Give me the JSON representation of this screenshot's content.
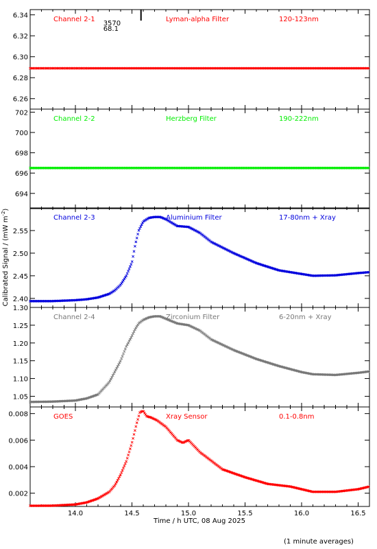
{
  "chart_data": {
    "type": "scatter",
    "xlabel": "Time / h UTC, 08 Aug 2025",
    "ylabel": "Calibrated Signal / (mW m",
    "ylabel_sup": "-2",
    "ylabel_close": ")",
    "footnote": "(1 minute averages)",
    "xlim": [
      13.6,
      16.6
    ],
    "x_ticks": [
      "14.0",
      "14.5",
      "15.0",
      "15.5",
      "16.0",
      "16.5"
    ],
    "x_tick_values": [
      14.0,
      14.5,
      15.0,
      15.5,
      16.0,
      16.5
    ],
    "marker_time": 14.58,
    "marker_text_1": "3570",
    "marker_text_2": "68.1",
    "panels": [
      {
        "name": "Channel 2-1",
        "filter": "Lyman-alpha Filter",
        "band": "120-123nm",
        "color": "#ff0000",
        "ylim": [
          6.25,
          6.345
        ],
        "yticks": [
          "6.26",
          "6.28",
          "6.30",
          "6.32",
          "6.34"
        ],
        "ytick_values": [
          6.26,
          6.28,
          6.3,
          6.32,
          6.34
        ],
        "x": [
          13.6,
          16.6
        ],
        "y": [
          6.289,
          6.289
        ]
      },
      {
        "name": "Channel 2-2",
        "filter": "Herzberg Filter",
        "band": "190-222nm",
        "color": "#00ee00",
        "ylim": [
          692.5,
          702.3
        ],
        "yticks": [
          "694",
          "696",
          "698",
          "700",
          "702"
        ],
        "ytick_values": [
          694,
          696,
          698,
          700,
          702
        ],
        "x": [
          13.6,
          16.6
        ],
        "y": [
          696.5,
          696.5
        ]
      },
      {
        "name": "Channel 2-3",
        "filter": "Aluminium Filter",
        "band": "17-80nm + Xray",
        "color": "#0000dd",
        "ylim": [
          2.38,
          2.6
        ],
        "yticks": [
          "2.40",
          "2.45",
          "2.50",
          "2.55"
        ],
        "ytick_values": [
          2.4,
          2.45,
          2.5,
          2.55
        ],
        "x": [
          13.6,
          13.8,
          14.0,
          14.1,
          14.2,
          14.3,
          14.35,
          14.4,
          14.45,
          14.5,
          14.53,
          14.56,
          14.6,
          14.65,
          14.7,
          14.75,
          14.8,
          14.9,
          15.0,
          15.1,
          15.2,
          15.4,
          15.6,
          15.8,
          16.0,
          16.1,
          16.3,
          16.5,
          16.6
        ],
        "y": [
          2.394,
          2.394,
          2.396,
          2.398,
          2.402,
          2.41,
          2.418,
          2.43,
          2.45,
          2.48,
          2.52,
          2.55,
          2.57,
          2.578,
          2.58,
          2.58,
          2.575,
          2.56,
          2.558,
          2.545,
          2.525,
          2.5,
          2.478,
          2.462,
          2.454,
          2.45,
          2.451,
          2.456,
          2.458
        ]
      },
      {
        "name": "Channel 2-4",
        "filter": "Zirconium Filter",
        "band": "6-20nm + Xray",
        "color": "#777777",
        "ylim": [
          1.02,
          1.3
        ],
        "yticks": [
          "1.05",
          "1.10",
          "1.15",
          "1.20",
          "1.25",
          "1.30"
        ],
        "ytick_values": [
          1.05,
          1.1,
          1.15,
          1.2,
          1.25,
          1.3
        ],
        "x": [
          13.6,
          13.8,
          14.0,
          14.1,
          14.2,
          14.3,
          14.35,
          14.4,
          14.45,
          14.5,
          14.53,
          14.56,
          14.6,
          14.65,
          14.7,
          14.75,
          14.8,
          14.9,
          15.0,
          15.1,
          15.2,
          15.4,
          15.6,
          15.8,
          16.0,
          16.1,
          16.3,
          16.5,
          16.6
        ],
        "y": [
          1.034,
          1.035,
          1.038,
          1.044,
          1.055,
          1.09,
          1.12,
          1.15,
          1.19,
          1.22,
          1.24,
          1.255,
          1.265,
          1.272,
          1.275,
          1.275,
          1.268,
          1.255,
          1.25,
          1.235,
          1.21,
          1.18,
          1.155,
          1.135,
          1.118,
          1.112,
          1.11,
          1.116,
          1.12
        ]
      },
      {
        "name": "GOES",
        "filter": "Xray Sensor",
        "band": "0.1-0.8nm",
        "color": "#ff0000",
        "ylim": [
          0.001,
          0.0085
        ],
        "yticks": [
          "0.002",
          "0.004",
          "0.006",
          "0.008"
        ],
        "ytick_values": [
          0.002,
          0.004,
          0.006,
          0.008
        ],
        "x": [
          13.6,
          13.8,
          14.0,
          14.1,
          14.2,
          14.3,
          14.35,
          14.4,
          14.45,
          14.5,
          14.54,
          14.57,
          14.6,
          14.63,
          14.67,
          14.72,
          14.8,
          14.9,
          14.95,
          15.0,
          15.1,
          15.3,
          15.5,
          15.7,
          15.9,
          16.0,
          16.1,
          16.3,
          16.5,
          16.6
        ],
        "y": [
          0.00105,
          0.00106,
          0.00115,
          0.0013,
          0.0016,
          0.0021,
          0.0026,
          0.0034,
          0.0044,
          0.0058,
          0.0072,
          0.0081,
          0.0082,
          0.0078,
          0.0077,
          0.0075,
          0.007,
          0.006,
          0.0058,
          0.006,
          0.0051,
          0.0038,
          0.0032,
          0.0027,
          0.0025,
          0.0023,
          0.0021,
          0.0021,
          0.0023,
          0.0025
        ]
      }
    ]
  }
}
